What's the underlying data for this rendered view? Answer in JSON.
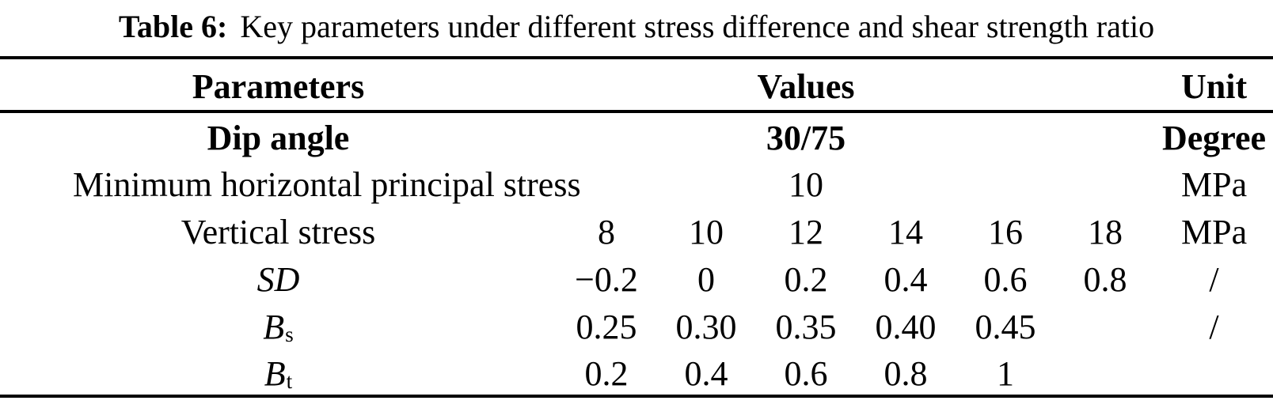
{
  "page": {
    "background": "#ffffff",
    "text_color": "#000000"
  },
  "caption": {
    "label": "Table 6:",
    "text": "Key parameters under different stress difference and shear strength ratio"
  },
  "table": {
    "header": {
      "parameters": "Parameters",
      "values": "Values",
      "unit": "Unit"
    },
    "rows": [
      {
        "param": "Dip angle",
        "value_span": "30/75",
        "unit": "Degree"
      },
      {
        "param": "Minimum horizontal principal stress",
        "value_span": "10",
        "unit": "MPa"
      },
      {
        "param": "Vertical stress",
        "values": [
          "8",
          "10",
          "12",
          "14",
          "16",
          "18"
        ],
        "unit": "MPa"
      },
      {
        "param": "SD",
        "values": [
          "−0.2",
          "0",
          "0.2",
          "0.4",
          "0.6",
          "0.8"
        ],
        "unit": "/"
      },
      {
        "param": "B",
        "param_sub": "s",
        "values": [
          "0.25",
          "0.30",
          "0.35",
          "0.40",
          "0.45",
          ""
        ],
        "unit": "/"
      },
      {
        "param": "B",
        "param_sub": "t",
        "values": [
          "0.2",
          "0.4",
          "0.6",
          "0.8",
          "1",
          ""
        ],
        "unit": ""
      }
    ]
  }
}
